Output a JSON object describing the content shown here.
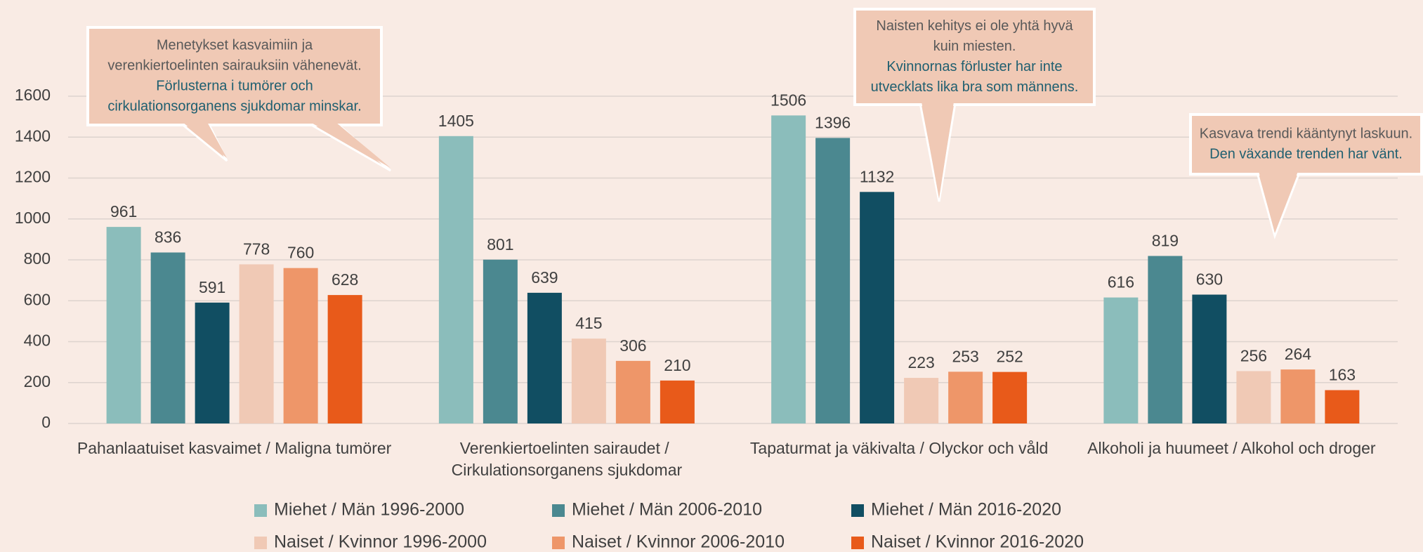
{
  "chart_data": {
    "type": "bar",
    "categories": [
      "Pahanlaatuiset kasvaimet / Maligna tumörer",
      "Verenkiertoelinten sairaudet / Cirkulationsorganens sjukdomar",
      "Tapaturmat ja väkivalta / Olyckor och våld",
      "Alkoholi ja huumeet / Alkohol och droger"
    ],
    "series": [
      {
        "name": "Miehet / Män 1996-2000",
        "color": "#8bbdbb",
        "values": [
          961,
          1405,
          1506,
          616
        ]
      },
      {
        "name": "Miehet / Män 2006-2010",
        "color": "#4b8890",
        "values": [
          836,
          801,
          1396,
          819
        ]
      },
      {
        "name": "Miehet / Män 2016-2020",
        "color": "#114e62",
        "values": [
          591,
          639,
          1132,
          630
        ]
      },
      {
        "name": "Naiset / Kvinnor 1996-2000",
        "color": "#f0c9b5",
        "values": [
          778,
          415,
          223,
          256
        ]
      },
      {
        "name": "Naiset / Kvinnor 2006-2010",
        "color": "#ee9669",
        "values": [
          760,
          306,
          253,
          264
        ]
      },
      {
        "name": "Naiset / Kvinnor 2016-2020",
        "color": "#e85a1a",
        "values": [
          628,
          210,
          252,
          163
        ]
      }
    ],
    "ylim": [
      0,
      1600
    ],
    "yticks": [
      0,
      200,
      400,
      600,
      800,
      1000,
      1200,
      1400,
      1600
    ],
    "grid": true,
    "annotations": [
      {
        "fi": [
          "Menetykset kasvaimiin ja",
          "verenkiertoelinten sairauksiin vähenevät."
        ],
        "sv": [
          "Förlusterna i tumörer och",
          "cirkulationsorganens sjukdomar minskar."
        ]
      },
      {
        "fi": [
          "Naisten kehitys ei ole yhtä hyvä",
          "kuin miesten."
        ],
        "sv": [
          "Kvinnornas förluster har inte",
          "utvecklats lika bra som männens."
        ]
      },
      {
        "fi": [
          "Kasvava trendi kääntynyt laskuun."
        ],
        "sv": [
          "Den växande trenden har vänt."
        ]
      }
    ]
  }
}
